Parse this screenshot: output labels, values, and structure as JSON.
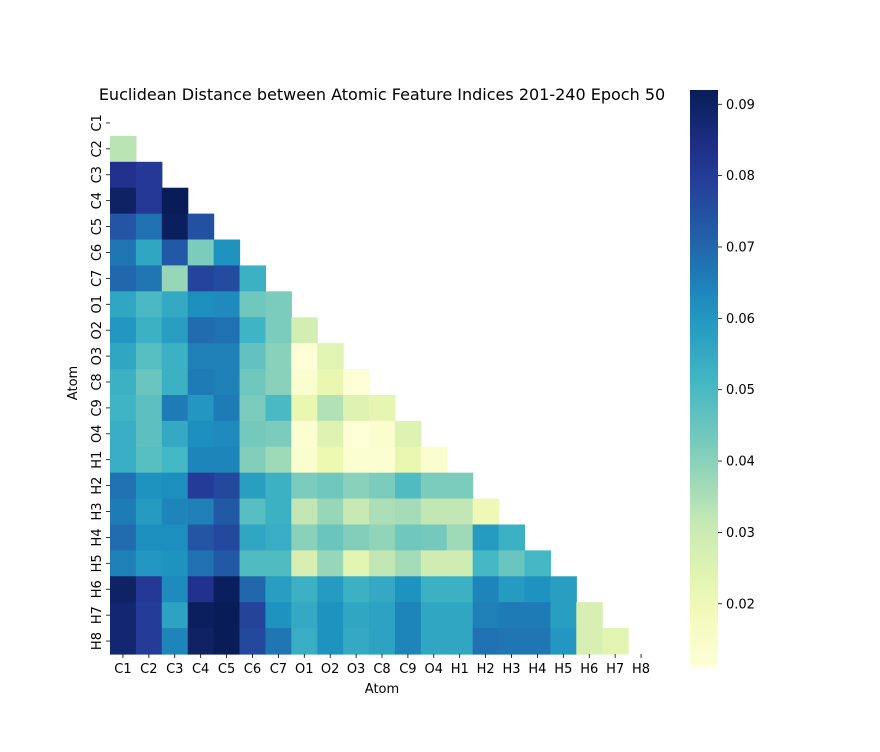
{
  "chart_data": {
    "type": "heatmap",
    "title": "Euclidean Distance between Atomic Feature Indices 201-240 Epoch 50",
    "xlabel": "Atom",
    "ylabel": "Atom",
    "labels": [
      "C1",
      "C2",
      "C3",
      "C4",
      "C5",
      "C6",
      "C7",
      "O1",
      "O2",
      "O3",
      "C8",
      "C9",
      "O4",
      "H1",
      "H2",
      "H3",
      "H4",
      "H5",
      "H6",
      "H7",
      "H8"
    ],
    "mask": "upper-triangle-including-diagonal",
    "colormap": "YlGnBu",
    "vmin": 0.011,
    "vmax": 0.092,
    "colorbar_ticks": [
      0.02,
      0.03,
      0.04,
      0.05,
      0.06,
      0.07,
      0.08,
      0.09
    ],
    "colorbar_tick_labels": [
      "0.02",
      "0.03",
      "0.04",
      "0.05",
      "0.06",
      "0.07",
      "0.08",
      "0.09"
    ],
    "matrix": [
      [],
      [
        0.033
      ],
      [
        0.083,
        0.081
      ],
      [
        0.09,
        0.081,
        0.092
      ],
      [
        0.074,
        0.068,
        0.091,
        0.075
      ],
      [
        0.067,
        0.056,
        0.073,
        0.042,
        0.061
      ],
      [
        0.07,
        0.067,
        0.038,
        0.078,
        0.076,
        0.053
      ],
      [
        0.056,
        0.05,
        0.055,
        0.062,
        0.063,
        0.044,
        0.042
      ],
      [
        0.06,
        0.053,
        0.058,
        0.069,
        0.068,
        0.052,
        0.042,
        0.028
      ],
      [
        0.056,
        0.048,
        0.053,
        0.065,
        0.065,
        0.046,
        0.04,
        0.012,
        0.024
      ],
      [
        0.053,
        0.045,
        0.053,
        0.066,
        0.065,
        0.044,
        0.04,
        0.014,
        0.022,
        0.012
      ],
      [
        0.052,
        0.047,
        0.066,
        0.06,
        0.066,
        0.042,
        0.05,
        0.022,
        0.034,
        0.025,
        0.023
      ],
      [
        0.054,
        0.047,
        0.055,
        0.062,
        0.063,
        0.043,
        0.042,
        0.013,
        0.025,
        0.012,
        0.014,
        0.025
      ],
      [
        0.054,
        0.048,
        0.051,
        0.064,
        0.064,
        0.041,
        0.037,
        0.014,
        0.021,
        0.013,
        0.013,
        0.022,
        0.014
      ],
      [
        0.068,
        0.061,
        0.062,
        0.08,
        0.077,
        0.058,
        0.053,
        0.042,
        0.044,
        0.04,
        0.042,
        0.049,
        0.042,
        0.042
      ],
      [
        0.066,
        0.059,
        0.064,
        0.065,
        0.073,
        0.048,
        0.053,
        0.032,
        0.038,
        0.031,
        0.035,
        0.036,
        0.032,
        0.032,
        0.02
      ],
      [
        0.069,
        0.062,
        0.062,
        0.074,
        0.077,
        0.056,
        0.054,
        0.04,
        0.045,
        0.041,
        0.039,
        0.044,
        0.043,
        0.037,
        0.059,
        0.053
      ],
      [
        0.065,
        0.06,
        0.061,
        0.068,
        0.073,
        0.049,
        0.049,
        0.027,
        0.038,
        0.024,
        0.032,
        0.036,
        0.029,
        0.029,
        0.051,
        0.045,
        0.051
      ],
      [
        0.09,
        0.081,
        0.063,
        0.083,
        0.091,
        0.07,
        0.058,
        0.053,
        0.059,
        0.053,
        0.055,
        0.061,
        0.053,
        0.053,
        0.064,
        0.059,
        0.061,
        0.058
      ],
      [
        0.088,
        0.08,
        0.057,
        0.091,
        0.092,
        0.078,
        0.061,
        0.055,
        0.061,
        0.056,
        0.057,
        0.064,
        0.056,
        0.056,
        0.065,
        0.066,
        0.066,
        0.058,
        0.027
      ],
      [
        0.088,
        0.08,
        0.064,
        0.09,
        0.092,
        0.077,
        0.067,
        0.054,
        0.061,
        0.055,
        0.057,
        0.064,
        0.056,
        0.056,
        0.068,
        0.067,
        0.067,
        0.06,
        0.027,
        0.024
      ]
    ]
  }
}
